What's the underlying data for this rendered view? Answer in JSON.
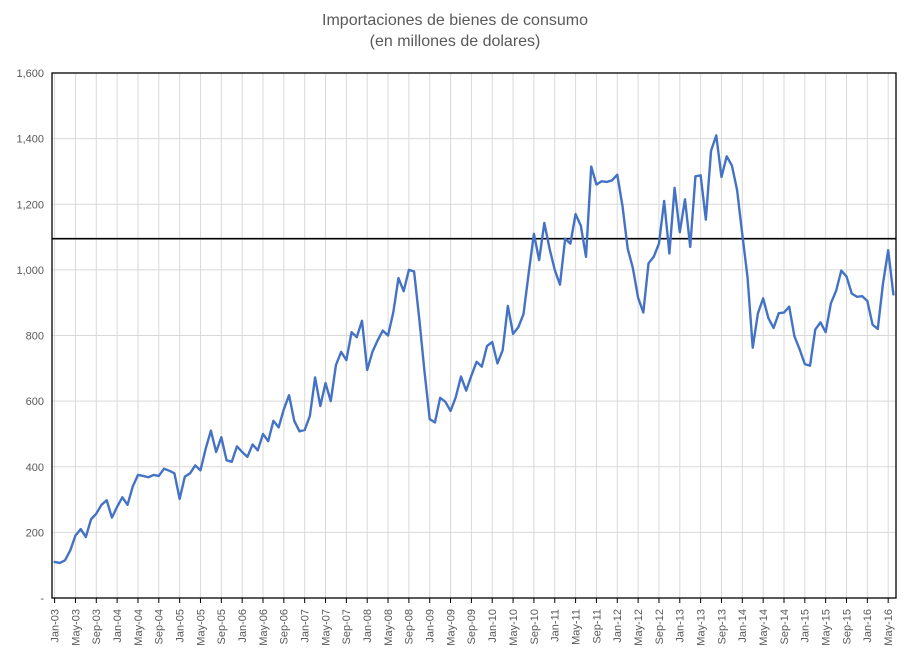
{
  "chart": {
    "title": "Importaciones de bienes de consumo",
    "subtitle": "(en millones de dolares)"
  },
  "colors": {
    "series_line": "#4472C4",
    "reference_line": "#000000",
    "plot_border": "#000000",
    "gridline": "#D9D9D9",
    "axis_text": "#595959",
    "title_text": "#595959",
    "background": "#FFFFFF"
  },
  "chart_data": {
    "type": "line",
    "title": "Importaciones de bienes de consumo",
    "subtitle": "(en millones de dolares)",
    "xlabel": "",
    "ylabel": "",
    "frequency": "monthly",
    "series_start": "Jan-03",
    "series_end": "Jun-16",
    "ylim": [
      0,
      1600
    ],
    "y_tick_step": 200,
    "grid": true,
    "legend": "none",
    "reference_line": {
      "value": 1095,
      "color": "#000000"
    },
    "y_ticks": [
      {
        "value": 1600,
        "label": "1,600"
      },
      {
        "value": 1400,
        "label": "1,400"
      },
      {
        "value": 1200,
        "label": "1,200"
      },
      {
        "value": 1000,
        "label": "1,000"
      },
      {
        "value": 800,
        "label": "800"
      },
      {
        "value": 600,
        "label": "600"
      },
      {
        "value": 400,
        "label": "400"
      },
      {
        "value": 200,
        "label": "200"
      },
      {
        "value": 0,
        "label": "-"
      }
    ],
    "x_tick_every_n_months": 4,
    "x_tick_labels": [
      "Jan-03",
      "May-03",
      "Sep-03",
      "Jan-04",
      "May-04",
      "Sep-04",
      "Jan-05",
      "May-05",
      "Sep-05",
      "Jan-06",
      "May-06",
      "Sep-06",
      "Jan-07",
      "May-07",
      "Sep-07",
      "Jan-08",
      "May-08",
      "Sep-08",
      "Jan-09",
      "May-09",
      "Sep-09",
      "Jan-10",
      "May-10",
      "Sep-10",
      "Jan-11",
      "May-11",
      "Sep-11",
      "Jan-12",
      "May-12",
      "Sep-12",
      "Jan-13",
      "May-13",
      "Sep-13",
      "Jan-14",
      "May-14",
      "Sep-14",
      "Jan-15",
      "May-15",
      "Sep-15",
      "Jan-16",
      "May-16"
    ],
    "values": [
      110,
      107,
      115,
      145,
      190,
      210,
      186,
      240,
      257,
      284,
      298,
      245,
      278,
      307,
      284,
      340,
      375,
      372,
      368,
      375,
      372,
      394,
      388,
      380,
      302,
      370,
      380,
      404,
      389,
      455,
      510,
      445,
      490,
      420,
      415,
      462,
      445,
      430,
      468,
      450,
      500,
      478,
      540,
      520,
      575,
      618,
      540,
      508,
      512,
      555,
      672,
      585,
      655,
      600,
      710,
      750,
      725,
      810,
      795,
      845,
      695,
      750,
      785,
      815,
      800,
      870,
      975,
      935,
      1000,
      995,
      850,
      690,
      545,
      535,
      610,
      598,
      570,
      612,
      675,
      632,
      678,
      720,
      705,
      768,
      780,
      715,
      755,
      890,
      805,
      825,
      865,
      990,
      1110,
      1030,
      1143,
      1065,
      1000,
      955,
      1095,
      1080,
      1170,
      1135,
      1040,
      1315,
      1260,
      1270,
      1268,
      1273,
      1290,
      1195,
      1065,
      1005,
      915,
      870,
      1020,
      1040,
      1080,
      1210,
      1050,
      1250,
      1115,
      1215,
      1070,
      1285,
      1288,
      1153,
      1363,
      1410,
      1283,
      1346,
      1318,
      1243,
      1108,
      978,
      763,
      868,
      913,
      853,
      823,
      868,
      870,
      888,
      798,
      758,
      713,
      708,
      818,
      840,
      810,
      898,
      936,
      998,
      980,
      928,
      918,
      920,
      905,
      833,
      820,
      958,
      1060,
      925
    ]
  }
}
